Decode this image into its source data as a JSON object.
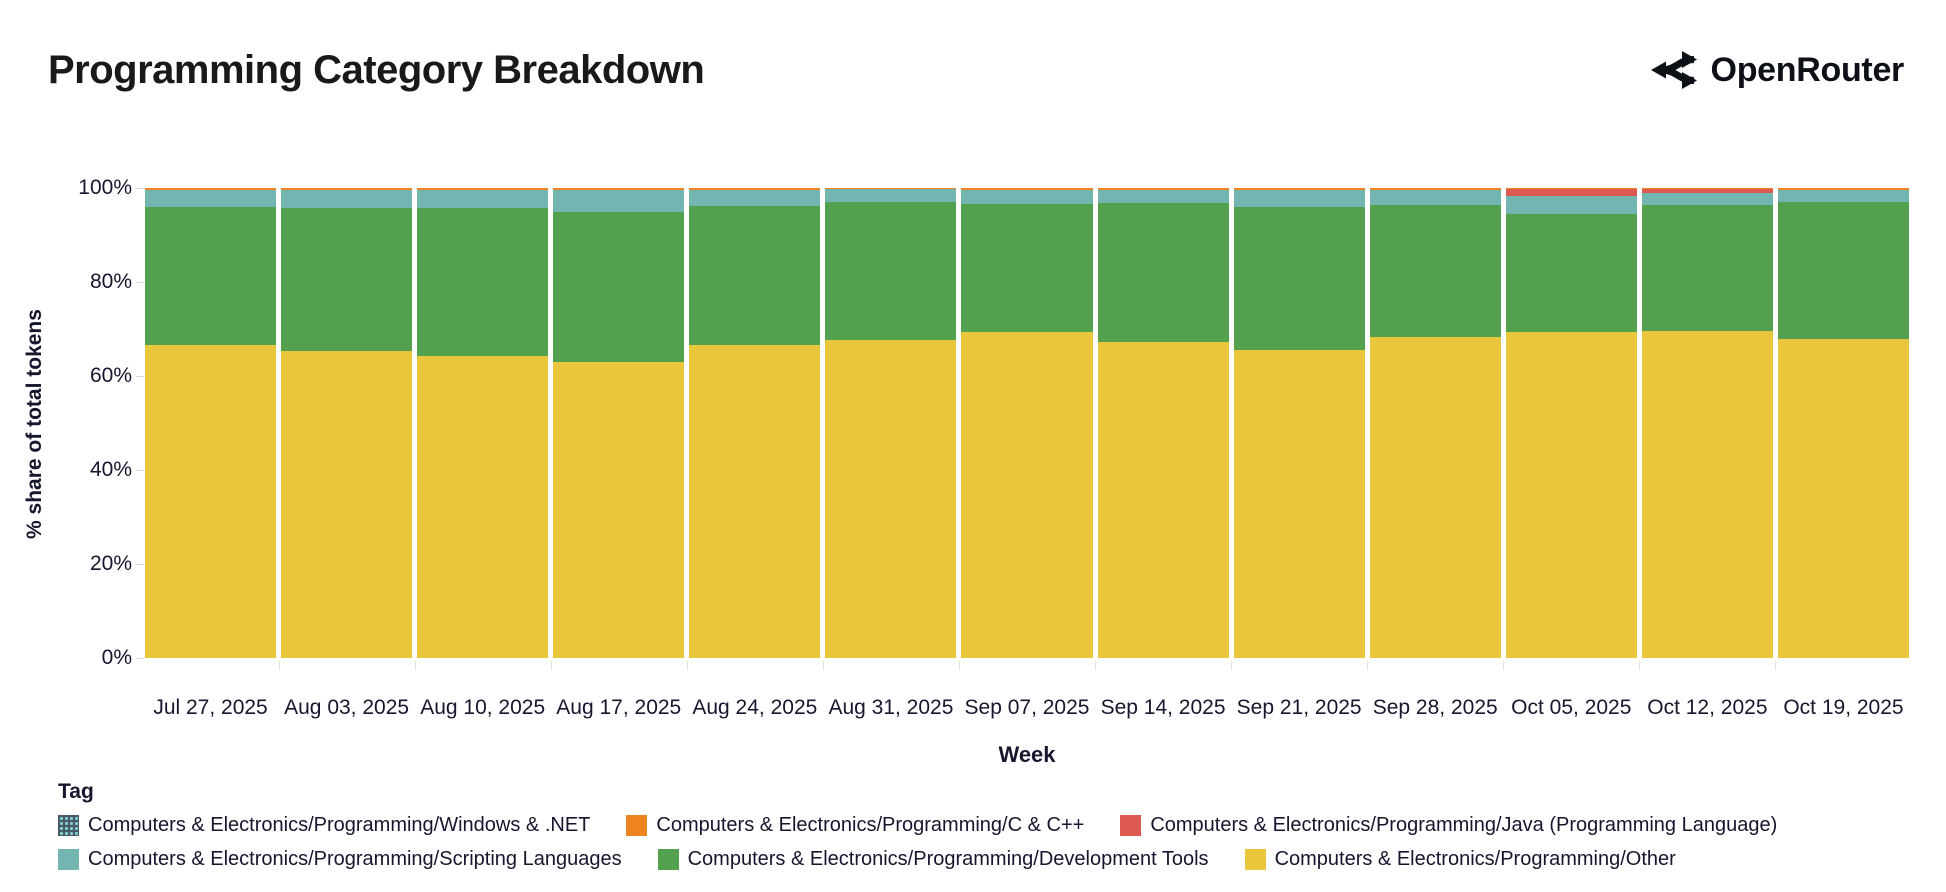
{
  "header": {
    "title": "Programming Category Breakdown",
    "brand": "OpenRouter"
  },
  "chart_data": {
    "type": "bar",
    "stacked": true,
    "normalized": true,
    "title": "Programming Category Breakdown",
    "xlabel": "Week",
    "ylabel": "% share of total tokens",
    "ylim": [
      0,
      100
    ],
    "yticks": [
      {
        "value": 0,
        "label": "0%"
      },
      {
        "value": 20,
        "label": "20%"
      },
      {
        "value": 40,
        "label": "40%"
      },
      {
        "value": 60,
        "label": "60%"
      },
      {
        "value": 80,
        "label": "80%"
      },
      {
        "value": 100,
        "label": "100%"
      }
    ],
    "grid": false,
    "categories": [
      "Jul 27, 2025",
      "Aug 03, 2025",
      "Aug 10, 2025",
      "Aug 17, 2025",
      "Aug 24, 2025",
      "Aug 31, 2025",
      "Sep 07, 2025",
      "Sep 14, 2025",
      "Sep 21, 2025",
      "Sep 28, 2025",
      "Oct 05, 2025",
      "Oct 12, 2025",
      "Oct 19, 2025"
    ],
    "stack_order": "bottom-to-top",
    "series": [
      {
        "name": "Computers & Electronics/Programming/Other",
        "color": "#e9c63b",
        "values": [
          66.5,
          65.3,
          64.3,
          63.0,
          66.5,
          67.6,
          69.3,
          67.3,
          65.6,
          68.3,
          69.3,
          69.5,
          67.8
        ]
      },
      {
        "name": "Computers & Electronics/Programming/Development Tools",
        "color": "#53a04f",
        "values": [
          29.5,
          30.5,
          31.4,
          31.9,
          29.7,
          29.4,
          27.3,
          29.5,
          30.4,
          28.1,
          25.1,
          26.8,
          29.2
        ]
      },
      {
        "name": "Computers & Electronics/Programming/Scripting Languages",
        "color": "#73b6b1",
        "values": [
          3.6,
          3.8,
          3.9,
          4.7,
          3.4,
          2.7,
          3.0,
          2.8,
          3.6,
          3.2,
          4.0,
          2.6,
          2.6
        ]
      },
      {
        "name": "Computers & Electronics/Programming/Java (Programming Language)",
        "color": "#dc5a52",
        "values": [
          0,
          0,
          0,
          0,
          0,
          0,
          0,
          0,
          0,
          0,
          1.3,
          1.0,
          0
        ]
      },
      {
        "name": "Computers & Electronics/Programming/C & C++",
        "color": "#ee8420",
        "values": [
          0.35,
          0.35,
          0.35,
          0.35,
          0.35,
          0.25,
          0.3,
          0.3,
          0.3,
          0.3,
          0.25,
          0.05,
          0.3
        ]
      },
      {
        "name": "Computers & Electronics/Programming/Windows & .NET",
        "color": "#47596b",
        "pattern": "dots",
        "values": [
          0.05,
          0.05,
          0.05,
          0.05,
          0.05,
          0.05,
          0.05,
          0.05,
          0.05,
          0.05,
          0.05,
          0.05,
          0.05
        ]
      }
    ],
    "legend": {
      "title": "Tag",
      "position": "bottom",
      "items": [
        {
          "label": "Computers & Electronics/Programming/Windows & .NET",
          "color": "#47596b",
          "pattern": "dots"
        },
        {
          "label": "Computers & Electronics/Programming/C & C++",
          "color": "#ee8420"
        },
        {
          "label": "Computers & Electronics/Programming/Java (Programming Language)",
          "color": "#dc5a52"
        },
        {
          "label": "Computers & Electronics/Programming/Scripting Languages",
          "color": "#73b6b1"
        },
        {
          "label": "Computers & Electronics/Programming/Development Tools",
          "color": "#53a04f"
        },
        {
          "label": "Computers & Electronics/Programming/Other",
          "color": "#e9c63b"
        }
      ]
    }
  }
}
